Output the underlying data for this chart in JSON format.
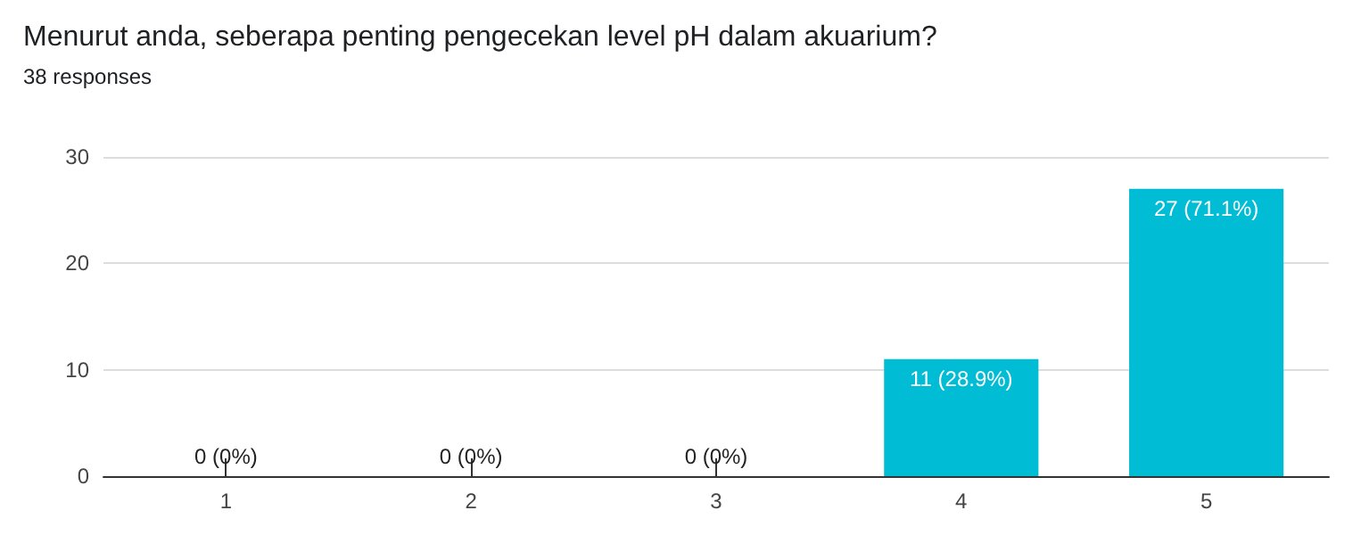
{
  "chart_data": {
    "type": "bar",
    "title": "Menurut anda, seberapa penting pengecekan level pH dalam akuarium?",
    "subtitle": "38 responses",
    "categories": [
      "1",
      "2",
      "3",
      "4",
      "5"
    ],
    "values": [
      0,
      0,
      0,
      11,
      27
    ],
    "value_labels": [
      "0 (0%)",
      "0 (0%)",
      "0 (0%)",
      "11 (28.9%)",
      "27 (71.1%)"
    ],
    "color": "#00bcd4",
    "ylim": [
      0,
      30
    ],
    "yticks": [
      0,
      10,
      20,
      30
    ],
    "grid": "y"
  }
}
